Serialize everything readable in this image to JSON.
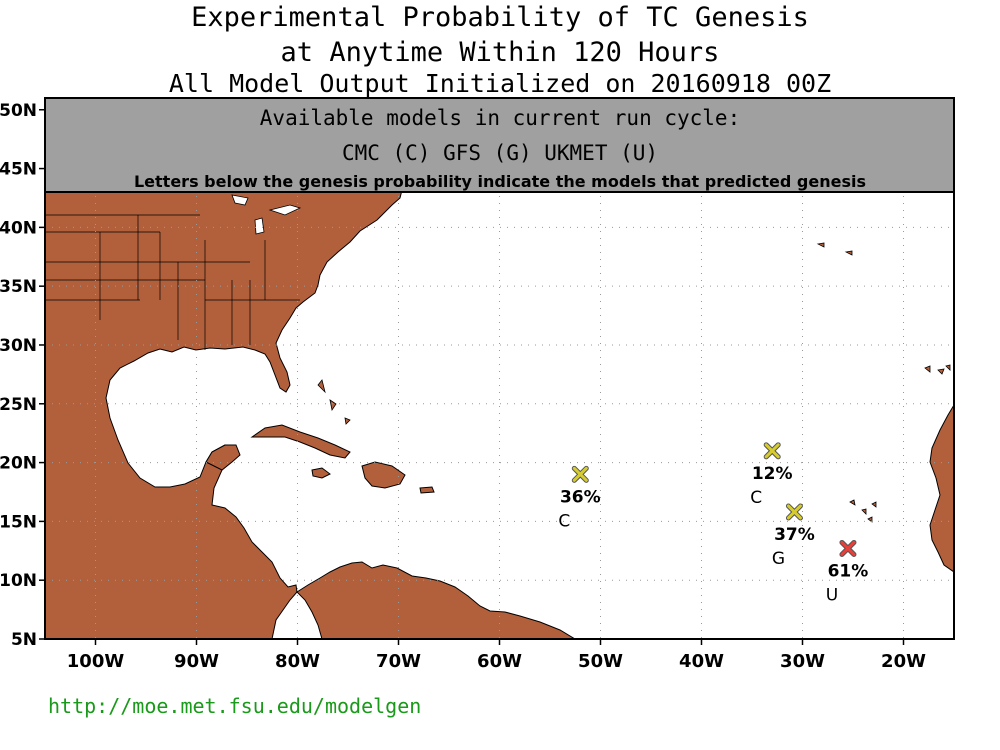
{
  "title": {
    "line1": "Experimental Probability of TC Genesis",
    "line2": "at Anytime Within 120 Hours",
    "line3": "All Model Output Initialized on 20160918 00Z"
  },
  "banner": {
    "line1": "Available models in current run cycle:",
    "line2": "CMC (C) GFS (G)  UKMET (U)",
    "line3": "Letters below the genesis probability indicate the models that predicted genesis"
  },
  "axes": {
    "lat_labels": [
      "50N",
      "45N",
      "40N",
      "35N",
      "30N",
      "25N",
      "20N",
      "15N",
      "10N",
      "5N"
    ],
    "lat_values": [
      50,
      45,
      40,
      35,
      30,
      25,
      20,
      15,
      10,
      5
    ],
    "lon_labels": [
      "100W",
      "90W",
      "80W",
      "70W",
      "60W",
      "50W",
      "40W",
      "30W",
      "20W"
    ],
    "lon_values": [
      -100,
      -90,
      -80,
      -70,
      -60,
      -50,
      -40,
      -30,
      -20
    ],
    "lon_range": [
      -105,
      -15
    ],
    "lat_range": [
      5,
      51
    ],
    "grid": true
  },
  "colors": {
    "land": "#b2603c",
    "banner": "#a0a0a0",
    "marker_low": "#d6cc2e",
    "marker_high": "#e8403a",
    "url": "#1a9a1a"
  },
  "genesis_points": [
    {
      "lon": -52.0,
      "lat": 19.0,
      "prob": "36%",
      "models": "C",
      "color": "#d6cc2e"
    },
    {
      "lon": -33.0,
      "lat": 21.0,
      "prob": "12%",
      "models": "C",
      "color": "#d6cc2e"
    },
    {
      "lon": -30.8,
      "lat": 15.8,
      "prob": "37%",
      "models": "G",
      "color": "#d6cc2e"
    },
    {
      "lon": -25.5,
      "lat": 12.7,
      "prob": "61%",
      "models": "U",
      "color": "#e8403a"
    }
  ],
  "footer": {
    "url": "http://moe.met.fsu.edu/modelgen"
  }
}
